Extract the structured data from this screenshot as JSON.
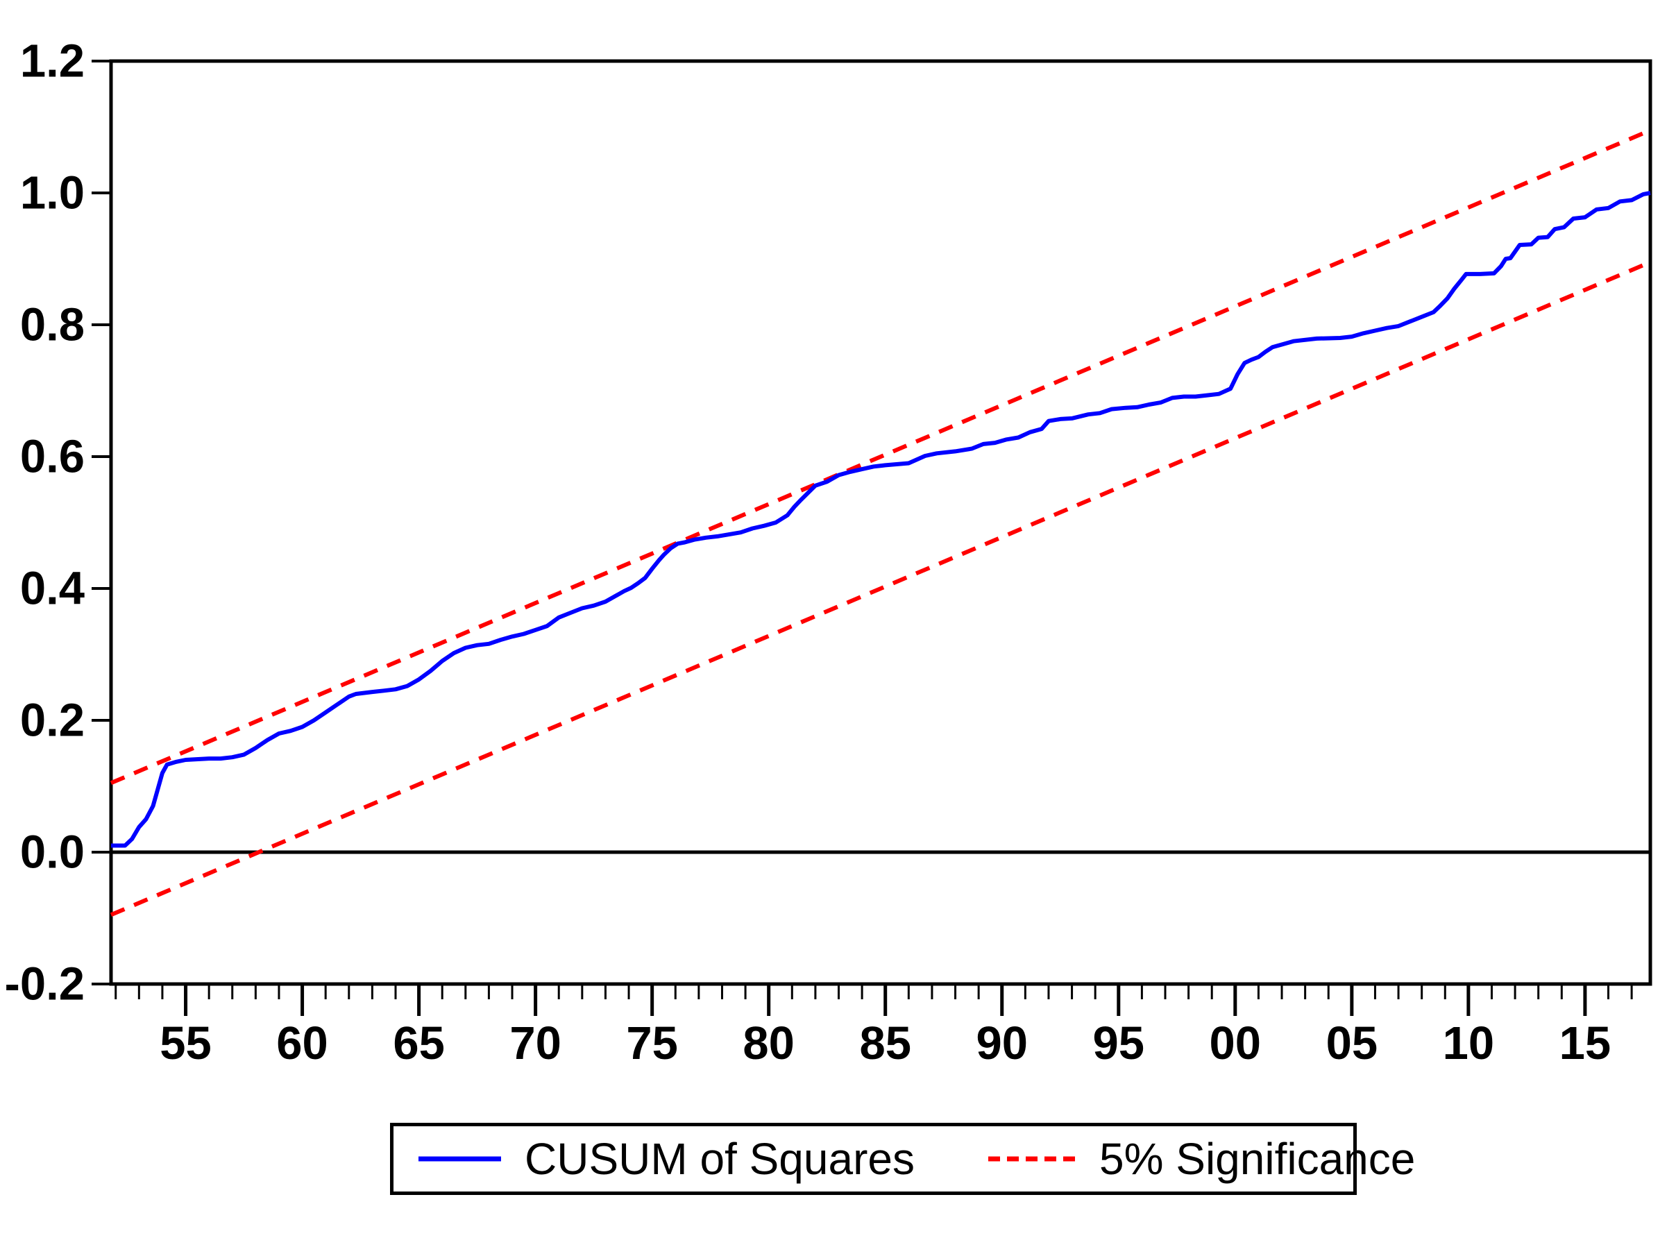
{
  "legend": {
    "items": [
      {
        "label": "CUSUM of Squares",
        "style": "solid",
        "color": "#0000ff"
      },
      {
        "label": "5% Significance",
        "style": "dashed",
        "color": "#ff0000"
      }
    ]
  },
  "colors": {
    "cusum_line": "#0000ff",
    "significance_line": "#ff0000",
    "axis": "#000000",
    "background": "#ffffff"
  },
  "chart_data": {
    "type": "line",
    "title": "",
    "xlabel": "",
    "ylabel": "",
    "grid": false,
    "legend_position": "bottom-outside-boxed",
    "x_axis": {
      "unit": "year",
      "range": [
        1951.8,
        2017.8
      ],
      "major_ticks": [
        1955,
        1960,
        1965,
        1970,
        1975,
        1980,
        1985,
        1990,
        1995,
        2000,
        2005,
        2010,
        2015
      ],
      "major_tick_labels": [
        "55",
        "60",
        "65",
        "70",
        "75",
        "80",
        "85",
        "90",
        "95",
        "00",
        "05",
        "10",
        "15"
      ],
      "minor_tick_interval": 1
    },
    "y_axis": {
      "range": [
        -0.2,
        1.2
      ],
      "ticks": [
        1.2,
        1.0,
        0.8,
        0.6,
        0.4,
        0.2,
        0.0,
        -0.2
      ],
      "tick_labels": [
        "1.2",
        "1.0",
        "0.8",
        "0.6",
        "0.4",
        "0.2",
        "0.0",
        "-0.2"
      ]
    },
    "zero_line": 0.0,
    "series": [
      {
        "name": "CUSUM of Squares",
        "color": "#0000ff",
        "style": "solid",
        "points": [
          [
            1951.8,
            0.01
          ],
          [
            1952.4,
            0.01
          ],
          [
            1952.7,
            0.02
          ],
          [
            1953.0,
            0.038
          ],
          [
            1953.3,
            0.05
          ],
          [
            1953.6,
            0.07
          ],
          [
            1953.8,
            0.095
          ],
          [
            1954.0,
            0.12
          ],
          [
            1954.2,
            0.133
          ],
          [
            1954.6,
            0.137
          ],
          [
            1955.0,
            0.14
          ],
          [
            1956.0,
            0.142
          ],
          [
            1956.5,
            0.142
          ],
          [
            1957.0,
            0.144
          ],
          [
            1957.5,
            0.148
          ],
          [
            1958.0,
            0.158
          ],
          [
            1958.5,
            0.17
          ],
          [
            1959.0,
            0.18
          ],
          [
            1959.5,
            0.184
          ],
          [
            1960.0,
            0.19
          ],
          [
            1960.5,
            0.2
          ],
          [
            1961.0,
            0.212
          ],
          [
            1961.5,
            0.224
          ],
          [
            1962.0,
            0.236
          ],
          [
            1962.3,
            0.24
          ],
          [
            1963.0,
            0.243
          ],
          [
            1963.5,
            0.245
          ],
          [
            1964.0,
            0.247
          ],
          [
            1964.5,
            0.252
          ],
          [
            1965.0,
            0.262
          ],
          [
            1965.5,
            0.275
          ],
          [
            1966.0,
            0.29
          ],
          [
            1966.5,
            0.302
          ],
          [
            1967.0,
            0.31
          ],
          [
            1967.5,
            0.314
          ],
          [
            1968.0,
            0.316
          ],
          [
            1968.5,
            0.322
          ],
          [
            1969.0,
            0.327
          ],
          [
            1969.5,
            0.331
          ],
          [
            1970.0,
            0.337
          ],
          [
            1970.5,
            0.343
          ],
          [
            1971.0,
            0.356
          ],
          [
            1971.5,
            0.363
          ],
          [
            1972.0,
            0.37
          ],
          [
            1972.5,
            0.374
          ],
          [
            1973.0,
            0.38
          ],
          [
            1973.4,
            0.388
          ],
          [
            1973.8,
            0.396
          ],
          [
            1974.1,
            0.401
          ],
          [
            1974.4,
            0.408
          ],
          [
            1974.7,
            0.416
          ],
          [
            1975.0,
            0.43
          ],
          [
            1975.3,
            0.443
          ],
          [
            1975.5,
            0.451
          ],
          [
            1975.8,
            0.461
          ],
          [
            1976.1,
            0.468
          ],
          [
            1976.4,
            0.47
          ],
          [
            1976.8,
            0.474
          ],
          [
            1977.3,
            0.477
          ],
          [
            1977.8,
            0.479
          ],
          [
            1978.3,
            0.482
          ],
          [
            1978.8,
            0.485
          ],
          [
            1979.3,
            0.491
          ],
          [
            1979.8,
            0.495
          ],
          [
            1980.3,
            0.5
          ],
          [
            1980.8,
            0.511
          ],
          [
            1981.1,
            0.524
          ],
          [
            1981.4,
            0.535
          ],
          [
            1982.0,
            0.556
          ],
          [
            1982.5,
            0.562
          ],
          [
            1983.0,
            0.572
          ],
          [
            1983.5,
            0.577
          ],
          [
            1984.0,
            0.581
          ],
          [
            1984.5,
            0.585
          ],
          [
            1985.0,
            0.587
          ],
          [
            1986.0,
            0.59
          ],
          [
            1986.7,
            0.601
          ],
          [
            1987.2,
            0.605
          ],
          [
            1988.0,
            0.608
          ],
          [
            1988.7,
            0.612
          ],
          [
            1989.2,
            0.619
          ],
          [
            1989.7,
            0.621
          ],
          [
            1990.2,
            0.626
          ],
          [
            1990.7,
            0.629
          ],
          [
            1991.2,
            0.637
          ],
          [
            1991.7,
            0.642
          ],
          [
            1992.0,
            0.654
          ],
          [
            1992.5,
            0.657
          ],
          [
            1993.0,
            0.658
          ],
          [
            1993.7,
            0.664
          ],
          [
            1994.2,
            0.666
          ],
          [
            1994.7,
            0.672
          ],
          [
            1995.3,
            0.674
          ],
          [
            1995.8,
            0.675
          ],
          [
            1996.3,
            0.679
          ],
          [
            1996.8,
            0.682
          ],
          [
            1997.3,
            0.689
          ],
          [
            1997.8,
            0.691
          ],
          [
            1998.3,
            0.691
          ],
          [
            1998.8,
            0.693
          ],
          [
            1999.3,
            0.695
          ],
          [
            1999.8,
            0.703
          ],
          [
            2000.1,
            0.725
          ],
          [
            2000.4,
            0.742
          ],
          [
            2000.7,
            0.747
          ],
          [
            2001.0,
            0.751
          ],
          [
            2001.3,
            0.759
          ],
          [
            2001.6,
            0.766
          ],
          [
            2002.0,
            0.77
          ],
          [
            2002.5,
            0.775
          ],
          [
            2003.5,
            0.779
          ],
          [
            2004.5,
            0.78
          ],
          [
            2005.0,
            0.782
          ],
          [
            2005.5,
            0.787
          ],
          [
            2006.0,
            0.791
          ],
          [
            2006.5,
            0.795
          ],
          [
            2007.0,
            0.798
          ],
          [
            2007.5,
            0.805
          ],
          [
            2008.0,
            0.812
          ],
          [
            2008.5,
            0.819
          ],
          [
            2008.8,
            0.829
          ],
          [
            2009.1,
            0.84
          ],
          [
            2009.4,
            0.855
          ],
          [
            2009.7,
            0.868
          ],
          [
            2009.9,
            0.877
          ],
          [
            2010.5,
            0.877
          ],
          [
            2011.1,
            0.878
          ],
          [
            2011.4,
            0.889
          ],
          [
            2011.6,
            0.9
          ],
          [
            2011.8,
            0.901
          ],
          [
            2012.2,
            0.921
          ],
          [
            2012.7,
            0.922
          ],
          [
            2013.0,
            0.932
          ],
          [
            2013.4,
            0.933
          ],
          [
            2013.7,
            0.945
          ],
          [
            2014.1,
            0.948
          ],
          [
            2014.5,
            0.961
          ],
          [
            2015.0,
            0.963
          ],
          [
            2015.5,
            0.975
          ],
          [
            2016.0,
            0.977
          ],
          [
            2016.5,
            0.987
          ],
          [
            2017.0,
            0.989
          ],
          [
            2017.5,
            0.998
          ],
          [
            2017.8,
            1.0
          ]
        ]
      },
      {
        "name": "5% Significance (upper band)",
        "color": "#ff0000",
        "style": "dashed",
        "points": [
          [
            1951.8,
            0.105
          ],
          [
            2017.8,
            1.095
          ]
        ]
      },
      {
        "name": "5% Significance (lower band)",
        "color": "#ff0000",
        "style": "dashed",
        "points": [
          [
            1951.8,
            -0.095
          ],
          [
            2017.8,
            0.895
          ]
        ]
      }
    ]
  }
}
